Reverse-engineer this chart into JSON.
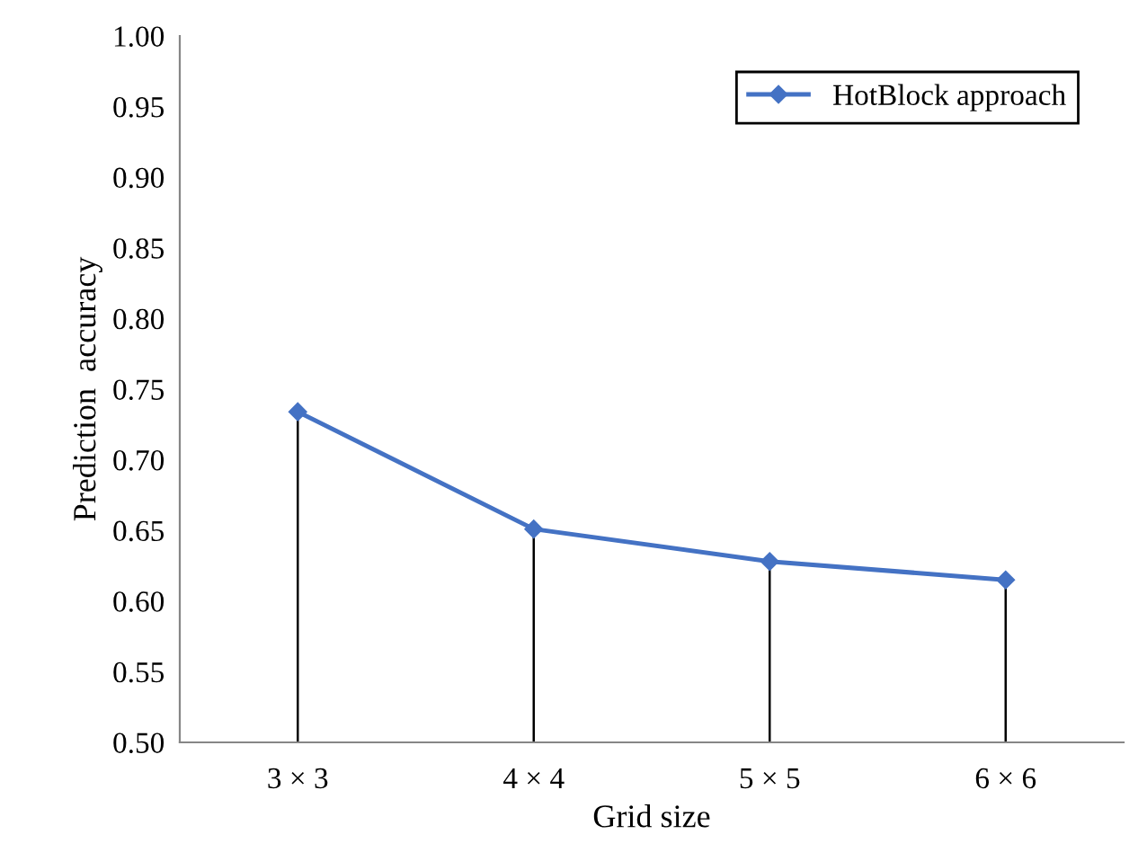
{
  "chart_data": {
    "type": "line",
    "xlabel": "Grid size",
    "ylabel": "Prediction  accuracy",
    "categories": [
      "3 × 3",
      "4 × 4",
      "5 × 5",
      "6 × 6"
    ],
    "series": [
      {
        "name": "HotBlock approach",
        "color": "#4472c4",
        "marker": "diamond",
        "values": [
          0.734,
          0.651,
          0.628,
          0.615
        ],
        "errors": [
          [
            0.5,
            0.734
          ],
          [
            0.5,
            0.651
          ],
          [
            0.5,
            0.628
          ],
          [
            0.5,
            0.615
          ]
        ]
      }
    ],
    "line_style": "solid",
    "ylim": [
      0.5,
      1.0
    ],
    "yticks": [
      {
        "value": 0.5,
        "label": "0.50"
      },
      {
        "value": 0.55,
        "label": "0.55"
      },
      {
        "value": 0.6,
        "label": "0.60"
      },
      {
        "value": 0.65,
        "label": "0.65"
      },
      {
        "value": 0.7,
        "label": "0.70"
      },
      {
        "value": 0.75,
        "label": "0.75"
      },
      {
        "value": 0.8,
        "label": "0.80"
      },
      {
        "value": 0.85,
        "label": "0.85"
      },
      {
        "value": 0.9,
        "label": "0.90"
      },
      {
        "value": 0.95,
        "label": "0.95"
      },
      {
        "value": 1.0,
        "label": "1.00"
      }
    ],
    "legend": "top right"
  }
}
